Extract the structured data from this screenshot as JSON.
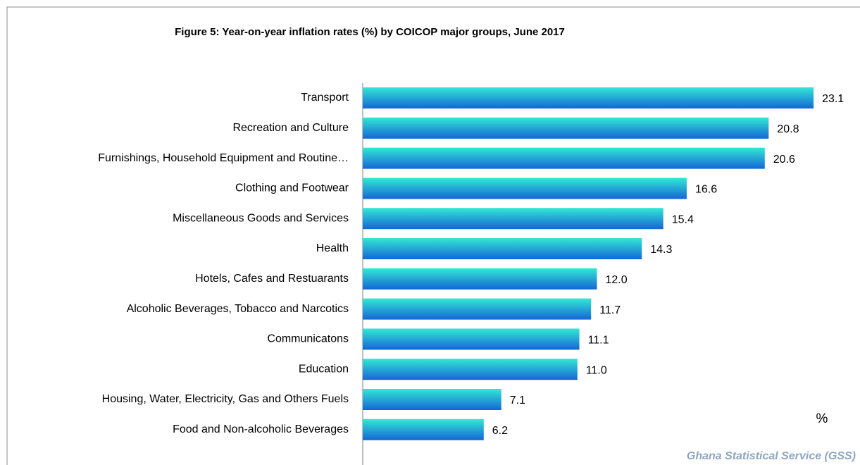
{
  "chart_data": {
    "type": "barh",
    "title": "Figure 5: Year-on-year inflation rates (%) by  COICOP  major groups, June 2017",
    "categories": [
      "Transport",
      "Recreation and Culture",
      "Furnishings, Household Equipment and Routine…",
      "Clothing and  Footwear",
      "Miscellaneous Goods and  Services",
      "Health",
      "Hotels, Cafes and  Restuarants",
      "Alcoholic Beverages, Tobacco and Narcotics",
      "Communicatons",
      "Education",
      "Housing, Water, Electricity, Gas and Others Fuels",
      "Food and Non-alcoholic Beverages"
    ],
    "values": [
      23.1,
      20.8,
      20.6,
      16.6,
      15.4,
      14.3,
      12.0,
      11.7,
      11.1,
      11.0,
      7.1,
      6.2
    ],
    "value_labels": [
      "23.1",
      "20.8",
      "20.6",
      "16.6",
      "15.4",
      "14.3",
      "12.0",
      "11.7",
      "11.1",
      "11.0",
      "7.1",
      "6.2"
    ],
    "gradient": [
      "#33e8d4",
      "#1566d6"
    ],
    "xlim": [
      0,
      24
    ],
    "unit_annotation": "%",
    "source": "Ghana Statistical Service (GSS)"
  }
}
